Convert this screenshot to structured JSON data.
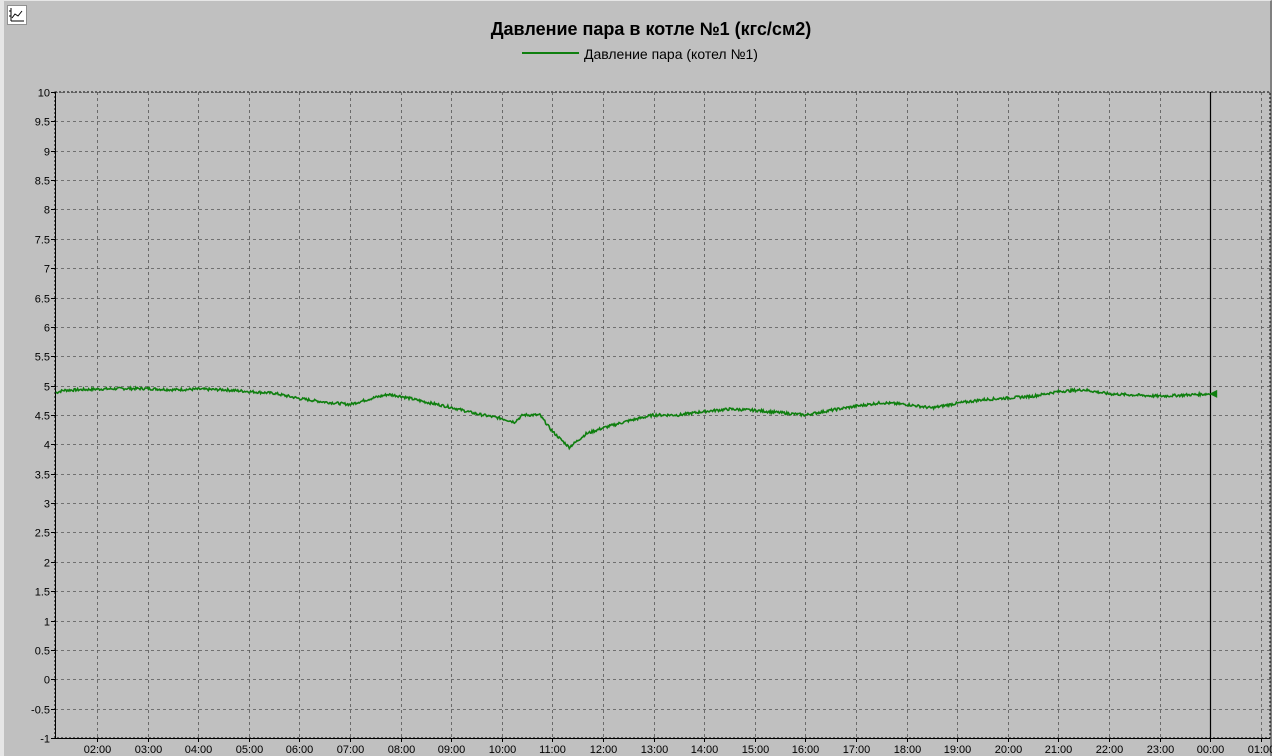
{
  "chart_data": {
    "type": "line",
    "title": "Давление пара в котле №1 (кгс/см2)",
    "xlabel": "",
    "ylabel": "",
    "ylim": [
      -1,
      10
    ],
    "y_ticks": [
      "10",
      "9.5",
      "9",
      "8.5",
      "8",
      "7.5",
      "7",
      "6.5",
      "6",
      "5.5",
      "5",
      "4.5",
      "4",
      "3.5",
      "3",
      "2.5",
      "2",
      "1.5",
      "1",
      "0.5",
      "0",
      "-0.5",
      "-1"
    ],
    "x_range_hours": [
      1.18,
      25.2
    ],
    "x_ticks": [
      "02:00",
      "03:00",
      "04:00",
      "05:00",
      "06:00",
      "07:00",
      "08:00",
      "09:00",
      "10:00",
      "11:00",
      "12:00",
      "13:00",
      "14:00",
      "15:00",
      "16:00",
      "17:00",
      "18:00",
      "19:00",
      "20:00",
      "21:00",
      "22:00",
      "23:00",
      "00:00",
      "01:00"
    ],
    "grid": true,
    "legend_position": "top-center",
    "cursor_line_at": "00:00",
    "series": [
      {
        "name": "Давление пара (котел №1)",
        "color": "#0f7f0f",
        "points": [
          [
            "01:11",
            4.88
          ],
          [
            "01:20",
            4.92
          ],
          [
            "02:00",
            4.94
          ],
          [
            "02:30",
            4.95
          ],
          [
            "03:00",
            4.95
          ],
          [
            "03:30",
            4.93
          ],
          [
            "04:00",
            4.94
          ],
          [
            "04:30",
            4.93
          ],
          [
            "05:00",
            4.9
          ],
          [
            "05:30",
            4.87
          ],
          [
            "06:00",
            4.78
          ],
          [
            "06:30",
            4.72
          ],
          [
            "07:00",
            4.68
          ],
          [
            "07:30",
            4.8
          ],
          [
            "07:45",
            4.85
          ],
          [
            "08:00",
            4.82
          ],
          [
            "08:30",
            4.72
          ],
          [
            "09:00",
            4.63
          ],
          [
            "09:30",
            4.52
          ],
          [
            "10:00",
            4.44
          ],
          [
            "10:15",
            4.38
          ],
          [
            "10:20",
            4.44
          ],
          [
            "10:25",
            4.5
          ],
          [
            "10:45",
            4.5
          ],
          [
            "11:00",
            4.22
          ],
          [
            "11:20",
            3.95
          ],
          [
            "11:40",
            4.18
          ],
          [
            "12:00",
            4.28
          ],
          [
            "12:30",
            4.4
          ],
          [
            "13:00",
            4.5
          ],
          [
            "13:30",
            4.5
          ],
          [
            "14:00",
            4.56
          ],
          [
            "14:30",
            4.6
          ],
          [
            "15:00",
            4.58
          ],
          [
            "15:30",
            4.54
          ],
          [
            "16:00",
            4.5
          ],
          [
            "16:30",
            4.58
          ],
          [
            "17:00",
            4.65
          ],
          [
            "17:30",
            4.71
          ],
          [
            "18:00",
            4.68
          ],
          [
            "18:30",
            4.62
          ],
          [
            "19:00",
            4.7
          ],
          [
            "19:30",
            4.76
          ],
          [
            "20:00",
            4.79
          ],
          [
            "20:30",
            4.82
          ],
          [
            "21:00",
            4.9
          ],
          [
            "21:30",
            4.93
          ],
          [
            "22:00",
            4.86
          ],
          [
            "22:30",
            4.84
          ],
          [
            "23:00",
            4.82
          ],
          [
            "23:30",
            4.84
          ],
          [
            "00:00",
            4.86
          ]
        ]
      }
    ]
  }
}
